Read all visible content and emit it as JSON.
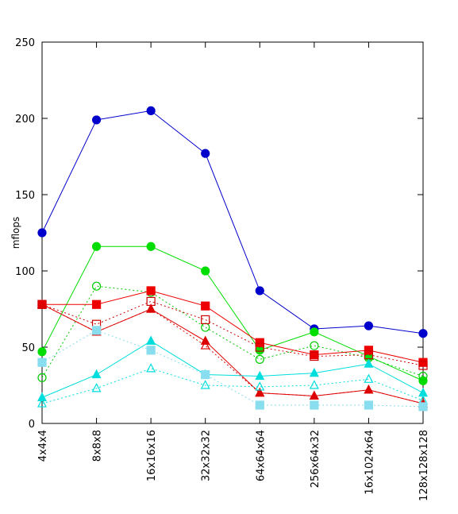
{
  "chart_data": {
    "type": "line",
    "title": "",
    "xlabel": "",
    "ylabel": "mflops",
    "ylim": [
      0,
      250
    ],
    "yticks": [
      0,
      50,
      100,
      150,
      200,
      250
    ],
    "grid": false,
    "legend": "none",
    "categories": [
      "4x4x4",
      "8x8x8",
      "16x16x16",
      "32x32x32",
      "64x64x64",
      "256x64x32",
      "16x1024x64",
      "128x128x128"
    ],
    "series": [
      {
        "color": "#0000cc",
        "marker": "circle",
        "filled": true,
        "dash": "solid",
        "values": [
          125,
          199,
          205,
          177,
          87,
          62,
          64,
          59
        ]
      },
      {
        "color": "#00dd00",
        "marker": "circle",
        "filled": true,
        "dash": "solid",
        "values": [
          47,
          116,
          116,
          100,
          48,
          60,
          44,
          28
        ]
      },
      {
        "color": "#00cc00",
        "marker": "circle",
        "filled": false,
        "dash": "dotted",
        "values": [
          30,
          90,
          86,
          63,
          42,
          51,
          43,
          31
        ]
      },
      {
        "color": "#ee0000",
        "marker": "square",
        "filled": true,
        "dash": "solid",
        "values": [
          78,
          78,
          87,
          77,
          53,
          45,
          48,
          40
        ]
      },
      {
        "color": "#cc0000",
        "marker": "square",
        "filled": false,
        "dash": "dotted",
        "values": [
          78,
          65,
          80,
          68,
          50,
          44,
          45,
          38
        ]
      },
      {
        "color": "#dd0000",
        "marker": "triangle",
        "filled": true,
        "dash": "solid",
        "values": [
          78,
          60,
          75,
          54,
          20,
          18,
          22,
          13
        ]
      },
      {
        "color": "#dd0000",
        "marker": "triangle",
        "filled": false,
        "dash": "dotted",
        "values": [
          78,
          60,
          75,
          51,
          20,
          18,
          22,
          13
        ]
      },
      {
        "color": "#00dddd",
        "marker": "triangle",
        "filled": true,
        "dash": "solid",
        "values": [
          17,
          32,
          54,
          32,
          31,
          33,
          39,
          20
        ]
      },
      {
        "color": "#00dddd",
        "marker": "triangle",
        "filled": false,
        "dash": "dotted",
        "values": [
          13,
          23,
          36,
          25,
          24,
          25,
          29,
          15
        ]
      },
      {
        "color": "#88ddee",
        "marker": "square",
        "filled": true,
        "dash": "dotted",
        "values": [
          40,
          61,
          48,
          32,
          12,
          12,
          12,
          11
        ]
      }
    ]
  }
}
